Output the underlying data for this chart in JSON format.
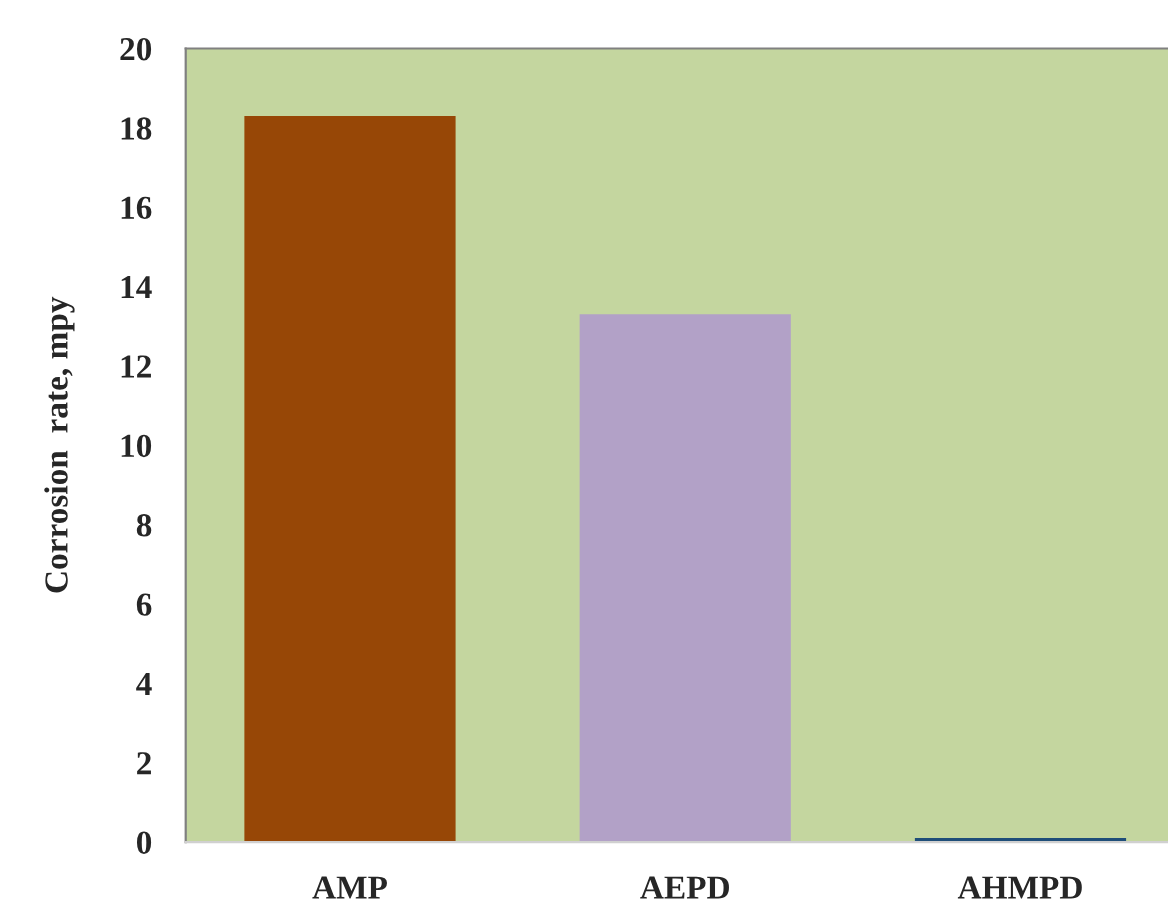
{
  "chart_data": {
    "type": "bar",
    "ylabel": "Corrosion  rate, mpy",
    "categories": [
      "AMP",
      "AEPD",
      "AHMPD"
    ],
    "values": [
      18.3,
      13.3,
      0.1
    ],
    "colors": [
      "#974706",
      "#b2a1c7",
      "#1f4e79"
    ],
    "ylim": [
      0,
      20
    ],
    "yticks": [
      0,
      2,
      4,
      6,
      8,
      10,
      12,
      14,
      16,
      18,
      20
    ],
    "grid": false
  }
}
